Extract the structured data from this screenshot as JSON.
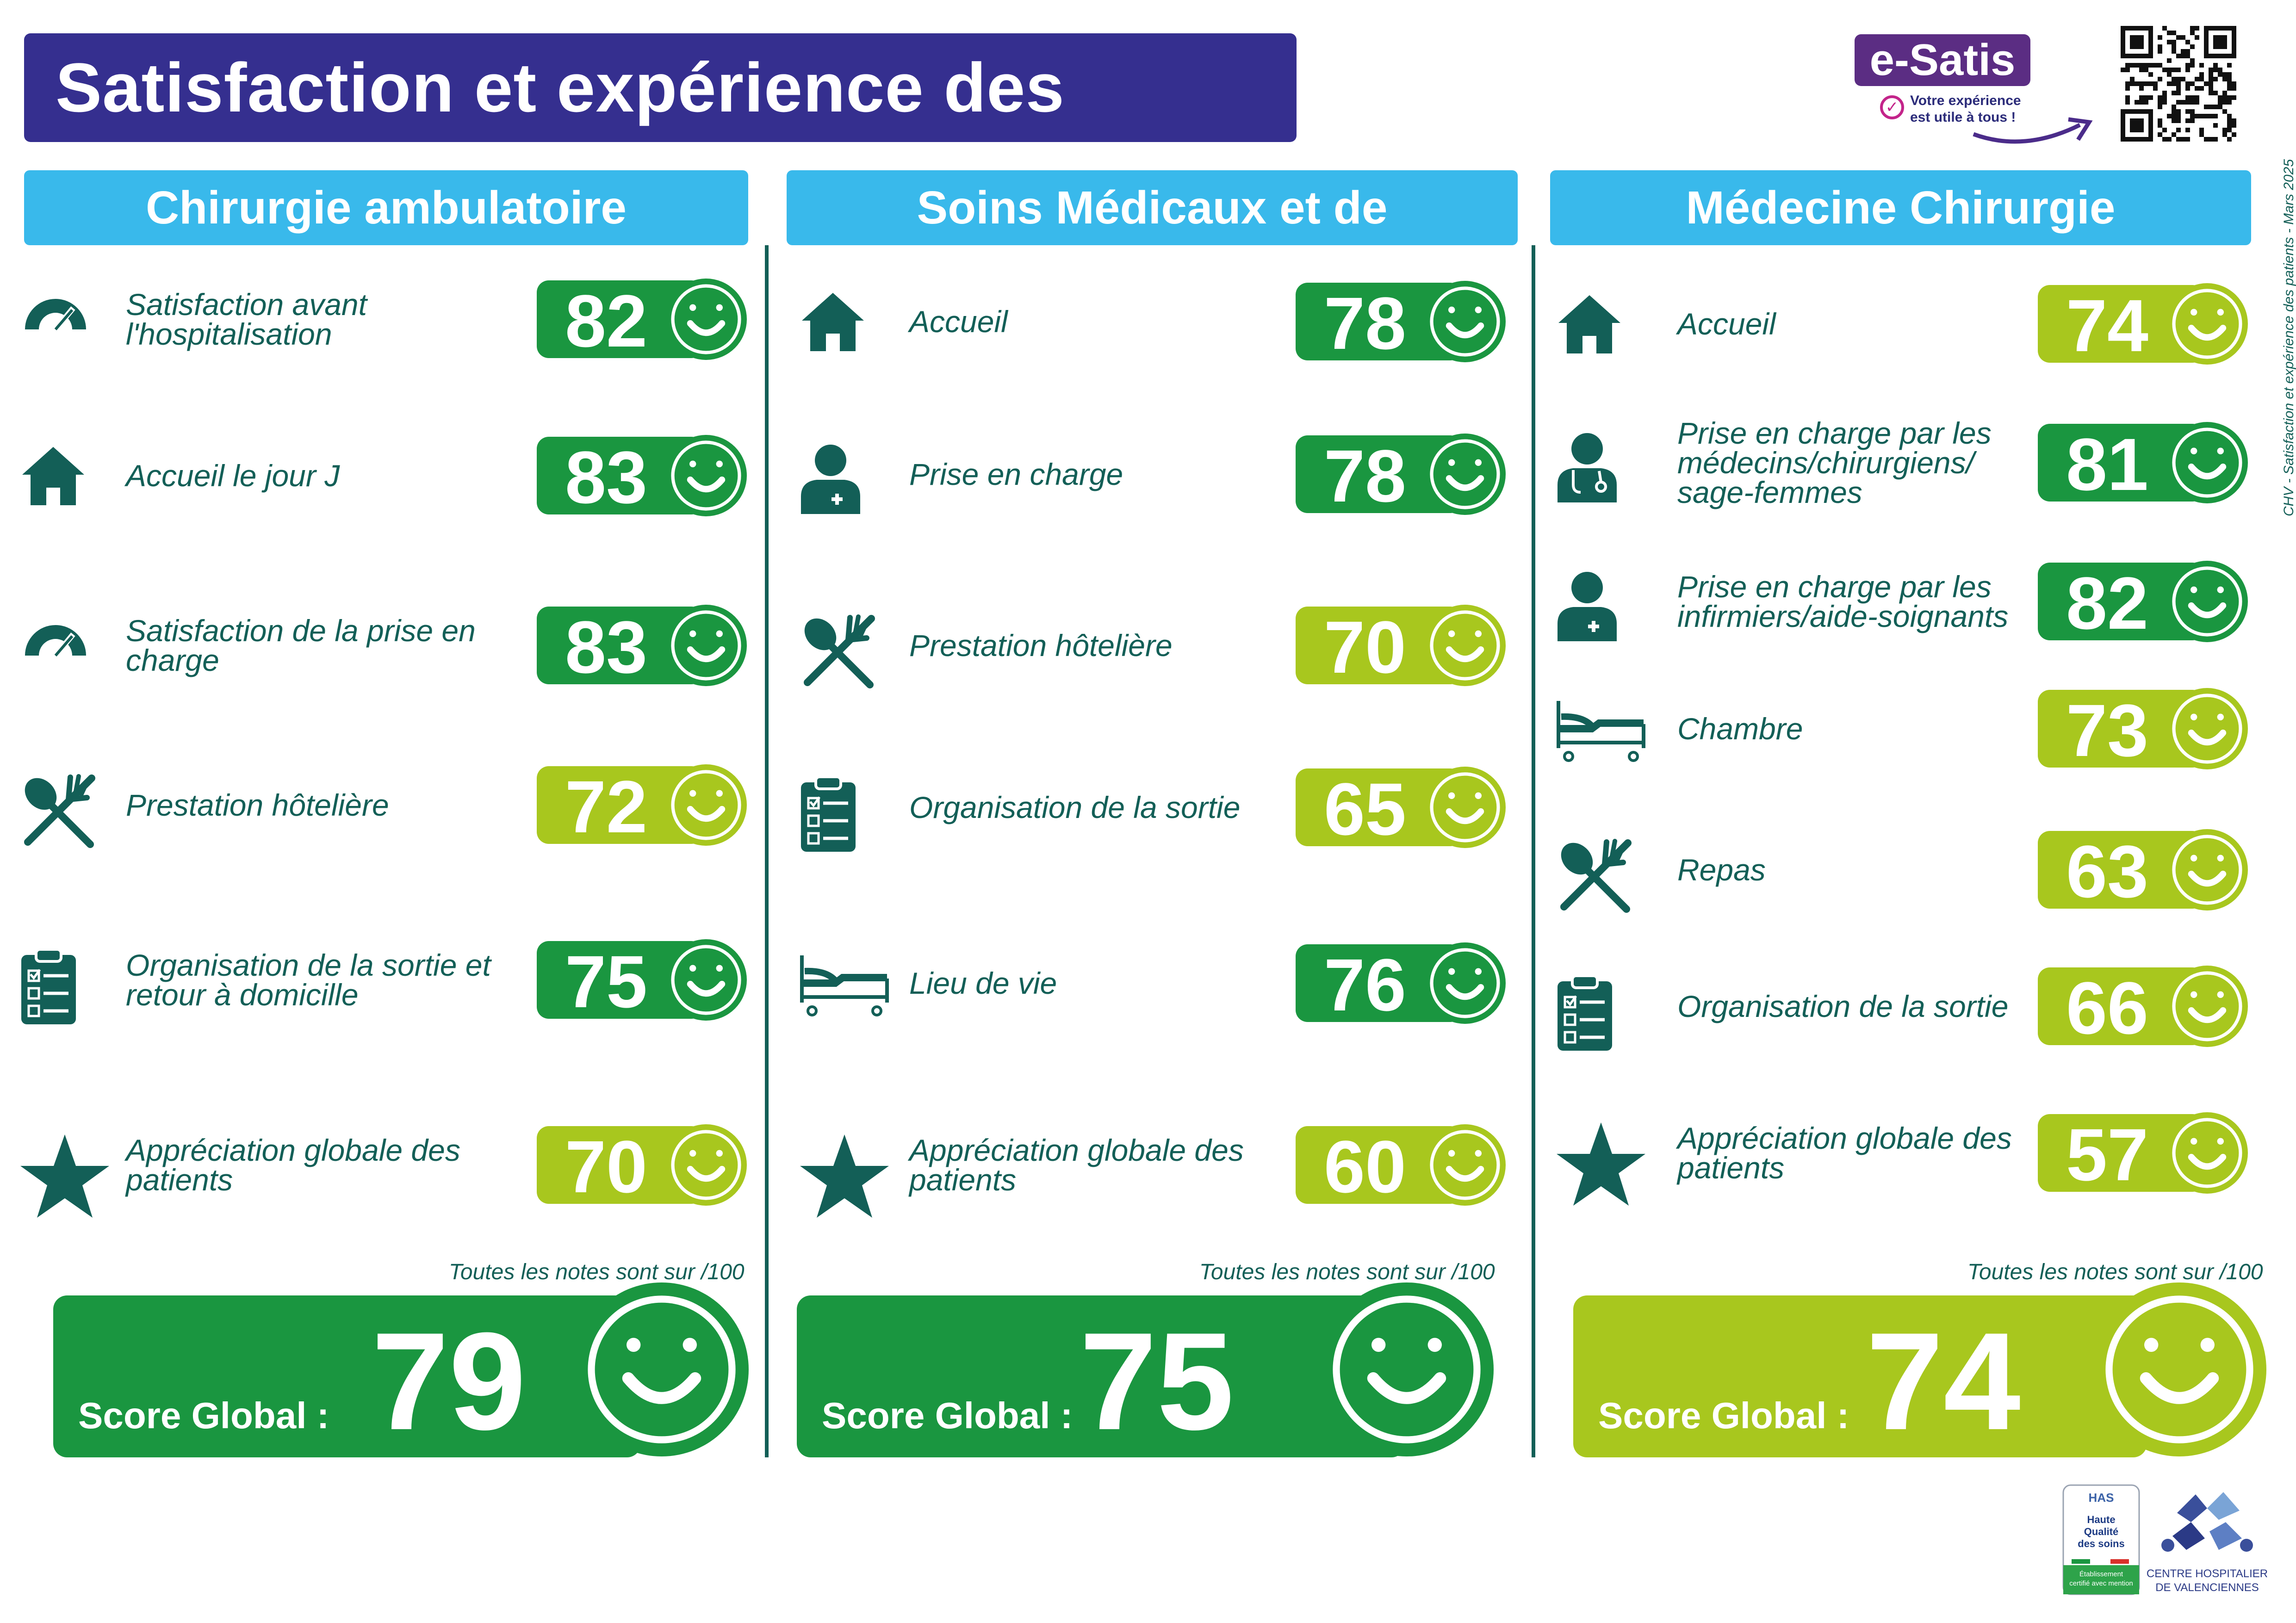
{
  "header": {
    "title": "Satisfaction et expérience des patients",
    "brand": "e-Satis",
    "brand_tagline_1": "Votre expérience",
    "brand_tagline_2": "est utile à tous !"
  },
  "colors": {
    "dark_green": "#1a9640",
    "light_green": "#a8c71e",
    "teal": "#135f57",
    "header_blue": "#39b9eb",
    "title_purple": "#352f8f"
  },
  "columns": [
    {
      "title": "Chirurgie ambulatoire",
      "items": [
        {
          "icon": "gauge-icon",
          "label": [
            "Satisfaction avant",
            "l'hospitalisation"
          ],
          "score": "82",
          "level": "high"
        },
        {
          "icon": "home-icon",
          "label": [
            "Accueil le jour J"
          ],
          "score": "83",
          "level": "high"
        },
        {
          "icon": "gauge-icon",
          "label": [
            "Satisfaction de la prise en",
            "charge"
          ],
          "score": "83",
          "level": "high"
        },
        {
          "icon": "fork-spoon-icon",
          "label": [
            "Prestation hôtelière"
          ],
          "score": "72",
          "level": "mid"
        },
        {
          "icon": "clipboard-icon",
          "label": [
            "Organisation de la sortie et",
            "retour à domicille"
          ],
          "score": "75",
          "level": "high"
        },
        {
          "icon": "star-icon",
          "label": [
            "Appréciation globale des",
            "patients"
          ],
          "score": "70",
          "level": "mid"
        }
      ],
      "note": "Toutes les notes sont sur /100",
      "score_label": "Score Global :",
      "global_score": "79",
      "global_level": "high"
    },
    {
      "title": "Soins Médicaux et de Réadaptation",
      "items": [
        {
          "icon": "home-icon",
          "label": [
            "Accueil"
          ],
          "score": "78",
          "level": "high"
        },
        {
          "icon": "nurse-icon",
          "label": [
            "Prise en charge"
          ],
          "score": "78",
          "level": "high"
        },
        {
          "icon": "fork-spoon-icon",
          "label": [
            "Prestation hôtelière"
          ],
          "score": "70",
          "level": "mid"
        },
        {
          "icon": "clipboard-icon",
          "label": [
            "Organisation de la sortie"
          ],
          "score": "65",
          "level": "mid"
        },
        {
          "icon": "bed-icon",
          "label": [
            "Lieu de vie"
          ],
          "score": "76",
          "level": "high"
        },
        {
          "icon": "star-icon",
          "label": [
            "Appréciation globale des",
            "patients"
          ],
          "score": "60",
          "level": "mid"
        }
      ],
      "note": "Toutes les notes sont sur /100",
      "score_label": "Score Global :",
      "global_score": "75",
      "global_level": "high"
    },
    {
      "title": "Médecine Chirurgie Obstétrique",
      "items": [
        {
          "icon": "home-icon",
          "label": [
            "Accueil"
          ],
          "score": "74",
          "level": "mid"
        },
        {
          "icon": "doctor-icon",
          "label": [
            "Prise en charge par les",
            "médecins/chirurgiens/",
            "sage-femmes"
          ],
          "score": "81",
          "level": "high"
        },
        {
          "icon": "nurse-icon",
          "label": [
            "Prise en charge par les",
            "infirmiers/aide-soignants"
          ],
          "score": "82",
          "level": "high"
        },
        {
          "icon": "bed-icon",
          "label": [
            "Chambre"
          ],
          "score": "73",
          "level": "mid"
        },
        {
          "icon": "fork-spoon-icon",
          "label": [
            "Repas"
          ],
          "score": "63",
          "level": "mid"
        },
        {
          "icon": "clipboard-icon",
          "label": [
            "Organisation de la sortie"
          ],
          "score": "66",
          "level": "mid"
        },
        {
          "icon": "star-icon",
          "label": [
            "Appréciation globale des",
            "patients"
          ],
          "score": "57",
          "level": "mid"
        }
      ],
      "note": "Toutes les notes sont sur /100",
      "score_label": "Score Global :",
      "global_score": "74",
      "global_level": "mid"
    }
  ],
  "footer": {
    "vertical_note": "CHV - Satisfaction et expérience des patients - Mars 2025",
    "has_text_1": "HAS",
    "has_text_2": "Haute",
    "has_text_3": "Qualité",
    "has_text_4": "des soins",
    "has_text_5": "Établissement",
    "has_text_6": "certifié avec mention",
    "chv_text_1": "CENTRE HOSPITALIER",
    "chv_text_2": "DE VALENCIENNES"
  }
}
